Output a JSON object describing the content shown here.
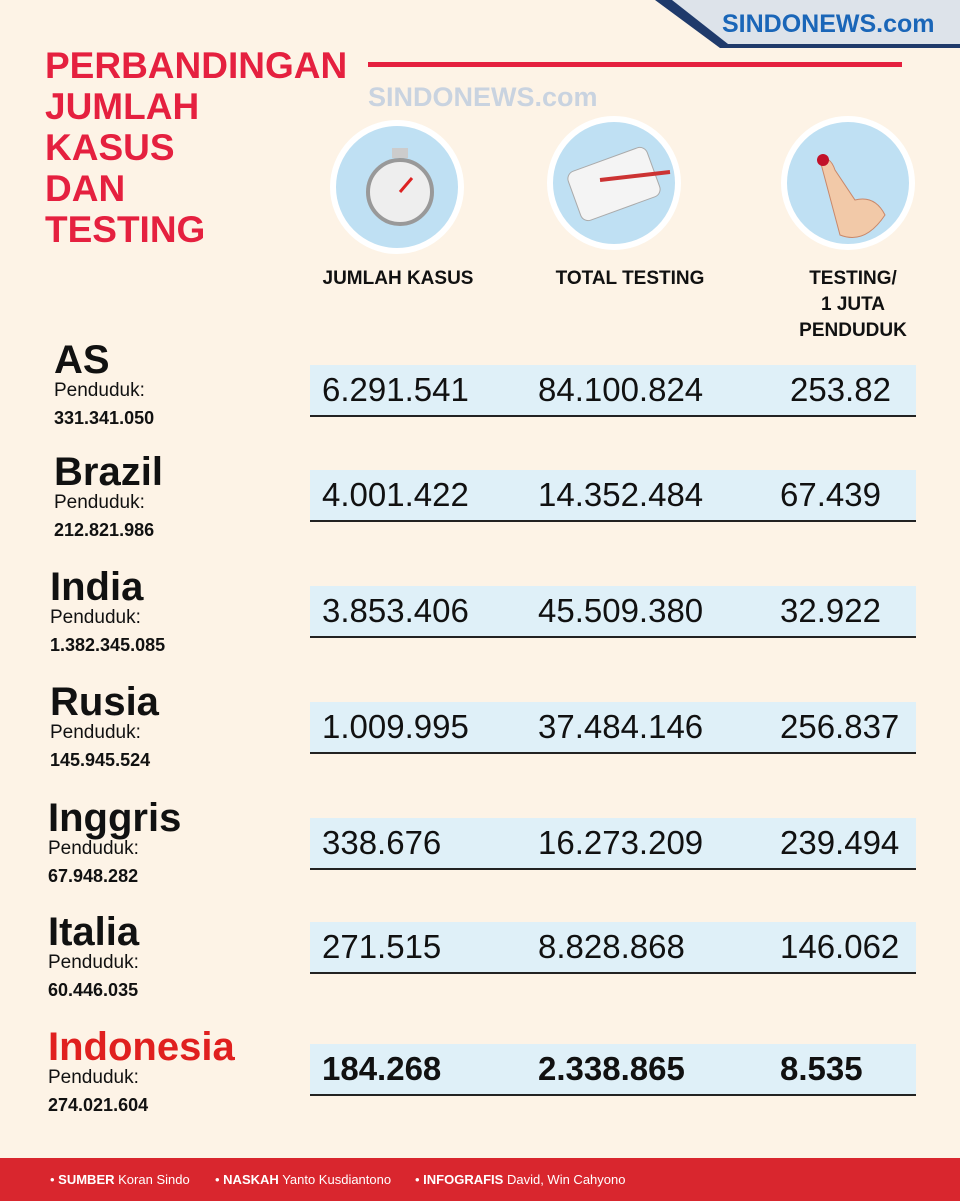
{
  "header": {
    "logo": "SINDONEWS.com",
    "title_lines": [
      "PERBANDINGAN",
      "JUMLAH",
      "KASUS",
      "DAN",
      "TESTING"
    ]
  },
  "table": {
    "columns": [
      [
        "JUMLAH KASUS"
      ],
      [
        "TOTAL TESTING"
      ],
      [
        "TESTING/",
        "1 JUTA",
        "PENDUDUK"
      ]
    ],
    "population_label": "Penduduk:",
    "rows": [
      {
        "country": "AS",
        "population": "331.341.050",
        "values": [
          "6.291.541",
          "84.100.824",
          "253.82"
        ]
      },
      {
        "country": "Brazil",
        "population": "212.821.986",
        "values": [
          "4.001.422",
          "14.352.484",
          "67.439"
        ]
      },
      {
        "country": "India",
        "population": "1.382.345.085",
        "values": [
          "3.853.406",
          "45.509.380",
          "32.922"
        ]
      },
      {
        "country": "Rusia",
        "population": "145.945.524",
        "values": [
          "1.009.995",
          "37.484.146",
          "256.837"
        ]
      },
      {
        "country": "Inggris",
        "population": "67.948.282",
        "values": [
          "338.676",
          "16.273.209",
          "239.494"
        ]
      },
      {
        "country": "Italia",
        "population": "60.446.035",
        "values": [
          "271.515",
          "8.828.868",
          "146.062"
        ]
      },
      {
        "country": "Indonesia",
        "population": "274.021.604",
        "values": [
          "184.268",
          "2.338.865",
          "8.535"
        ]
      }
    ]
  },
  "footer": {
    "credits": [
      {
        "label": "SUMBER",
        "text": "Koran Sindo"
      },
      {
        "label": "NASKAH",
        "text": "Yanto Kusdiantono"
      },
      {
        "label": "INFOGRAFIS",
        "text": "David, Win Cahyono"
      }
    ]
  }
}
